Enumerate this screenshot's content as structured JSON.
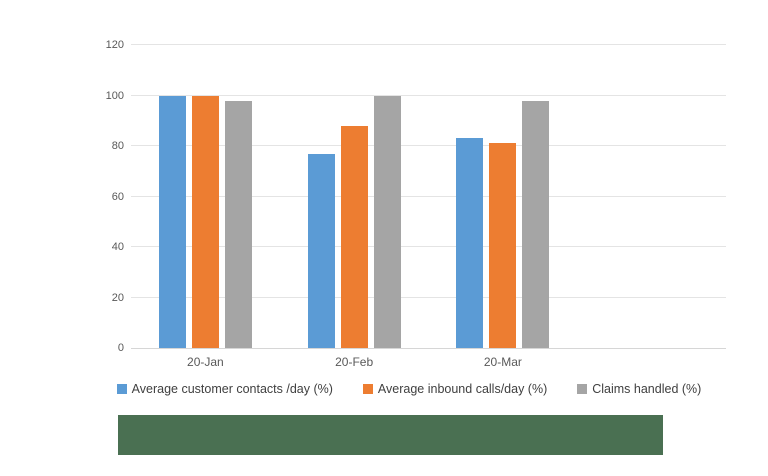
{
  "chart_data": {
    "type": "bar",
    "title": "",
    "categories": [
      "20-Jan",
      "20-Feb",
      "20-Mar"
    ],
    "series": [
      {
        "name": "Average customer contacts /day (%)",
        "color": "#5b9bd5",
        "values": [
          100,
          77,
          83
        ]
      },
      {
        "name": "Average inbound calls/day (%)",
        "color": "#ed7d31",
        "values": [
          100,
          88,
          81
        ]
      },
      {
        "name": "Claims handled (%)",
        "color": "#a5a5a5",
        "values": [
          98,
          100,
          98
        ]
      }
    ],
    "y_axis": {
      "min": 0,
      "max": 120,
      "tick_step": 20,
      "ticks": [
        0,
        20,
        40,
        60,
        80,
        100,
        120
      ]
    },
    "x_axis": {
      "total_slots": 4,
      "note": "fourth category slot is empty (no bars, no label)"
    },
    "legend_position": "bottom",
    "grid": true,
    "ylim": [
      0,
      120
    ]
  },
  "colors": {
    "background": "#ffffff",
    "gridline": "#e4e4e4",
    "axis_line": "#d6d6d6",
    "tick_text": "#595959",
    "legend_text": "#404040",
    "redaction_box": "#4a7052"
  },
  "icons": {
    "legend_swatches": [
      "blue-square-icon",
      "orange-square-icon",
      "gray-square-icon"
    ]
  }
}
